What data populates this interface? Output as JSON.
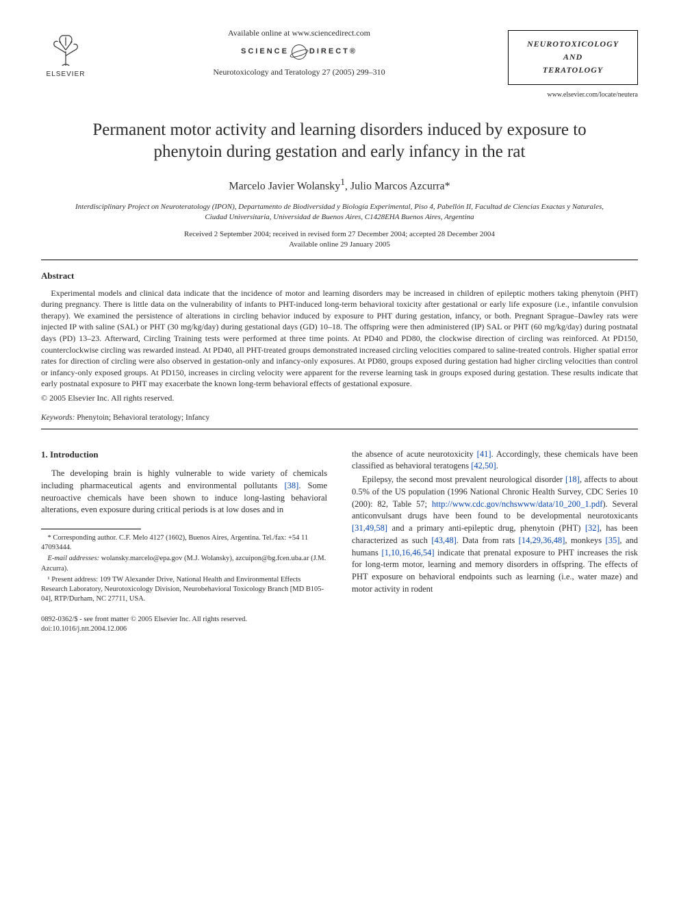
{
  "header": {
    "available_online": "Available online at www.sciencedirect.com",
    "sd_left": "SCIENCE",
    "sd_right": "DIRECT®",
    "journal_ref": "Neurotoxicology and Teratology 27 (2005) 299–310",
    "elsevier_label": "ELSEVIER",
    "journal_brand_line1": "NEUROTOXICOLOGY",
    "journal_brand_line2": "AND",
    "journal_brand_line3": "TERATOLOGY",
    "journal_url": "www.elsevier.com/locate/neutera"
  },
  "article": {
    "title": "Permanent motor activity and learning disorders induced by exposure to phenytoin during gestation and early infancy in the rat",
    "authors_html": "Marcelo Javier Wolansky<sup>1</sup>, Julio Marcos Azcurra*",
    "affiliation": "Interdisciplinary Project on Neuroteratology (IPON), Departamento de Biodiversidad y Biología Experimental, Piso 4, Pabellón II, Facultad de Ciencias Exactas y Naturales, Ciudad Universitaria, Universidad de Buenos Aires, C1428EHA Buenos Aires, Argentina",
    "dates_line1": "Received 2 September 2004; received in revised form 27 December 2004; accepted 28 December 2004",
    "dates_line2": "Available online 29 January 2005"
  },
  "abstract": {
    "heading": "Abstract",
    "text": "Experimental models and clinical data indicate that the incidence of motor and learning disorders may be increased in children of epileptic mothers taking phenytoin (PHT) during pregnancy. There is little data on the vulnerability of infants to PHT-induced long-term behavioral toxicity after gestational or early life exposure (i.e., infantile convulsion therapy). We examined the persistence of alterations in circling behavior induced by exposure to PHT during gestation, infancy, or both. Pregnant Sprague–Dawley rats were injected IP with saline (SAL) or PHT (30 mg/kg/day) during gestational days (GD) 10–18. The offspring were then administered (IP) SAL or PHT (60 mg/kg/day) during postnatal days (PD) 13–23. Afterward, Circling Training tests were performed at three time points. At PD40 and PD80, the clockwise direction of circling was reinforced. At PD150, counterclockwise circling was rewarded instead. At PD40, all PHT-treated groups demonstrated increased circling velocities compared to saline-treated controls. Higher spatial error rates for direction of circling were also observed in gestation-only and infancy-only exposures. At PD80, groups exposed during gestation had higher circling velocities than control or infancy-only exposed groups. At PD150, increases in circling velocity were apparent for the reverse learning task in groups exposed during gestation. These results indicate that early postnatal exposure to PHT may exacerbate the known long-term behavioral effects of gestational exposure.",
    "copyright": "© 2005 Elsevier Inc. All rights reserved."
  },
  "keywords": {
    "label": "Keywords:",
    "text": " Phenytoin; Behavioral teratology; Infancy"
  },
  "body": {
    "section_heading": "1. Introduction",
    "left_p1_html": "The developing brain is highly vulnerable to wide variety of chemicals including pharmaceutical agents and environmental pollutants <a class=\"ref\" href=\"#\">[38]</a>. Some neuroactive chemicals have been shown to induce long-lasting behavioral alterations, even exposure during critical periods is at low doses and in",
    "right_p1_html": "the absence of acute neurotoxicity <a class=\"ref\" href=\"#\">[41]</a>. Accordingly, these chemicals have been classified as behavioral teratogens <a class=\"ref\" href=\"#\">[42,50]</a>.",
    "right_p2_html": "Epilepsy, the second most prevalent neurological disorder <a class=\"ref\" href=\"#\">[18]</a>, affects to about 0.5% of the US population (1996 National Chronic Health Survey, CDC Series 10 (200): 82, Table 57; <a class=\"ref\" href=\"#\">http://www.cdc.gov/nchswww/data/10_200_1.pdf</a>). Several anticonvulsant drugs have been found to be developmental neurotoxicants <a class=\"ref\" href=\"#\">[31,49,58]</a> and a primary anti-epileptic drug, phenytoin (PHT) <a class=\"ref\" href=\"#\">[32]</a>, has been characterized as such <a class=\"ref\" href=\"#\">[43,48]</a>. Data from rats <a class=\"ref\" href=\"#\">[14,29,36,48]</a>, monkeys <a class=\"ref\" href=\"#\">[35]</a>, and humans <a class=\"ref\" href=\"#\">[1,10,16,46,54]</a> indicate that prenatal exposure to PHT increases the risk for long-term motor, learning and memory disorders in offspring. The effects of PHT exposure on behavioral endpoints such as learning (i.e., water maze) and motor activity in rodent"
  },
  "footnotes": {
    "corr": "* Corresponding author. C.F. Melo 4127 (1602), Buenos Aires, Argentina. Tel./fax: +54 11 47093444.",
    "email_label": "E-mail addresses:",
    "email_text": " wolansky.marcelo@epa.gov (M.J. Wolansky), azcuipon@bg.fcen.uba.ar (J.M. Azcurra).",
    "present": "¹ Present address: 109 TW Alexander Drive, National Health and Environmental Effects Research Laboratory, Neurotoxicology Division, Neurobehavioral Toxicology Branch [MD B105-04], RTP/Durham, NC 27711, USA."
  },
  "footer": {
    "line1": "0892-0362/$ - see front matter © 2005 Elsevier Inc. All rights reserved.",
    "line2": "doi:10.1016/j.ntt.2004.12.006"
  },
  "colors": {
    "text": "#2a2a2a",
    "link": "#0645ad",
    "rule": "#000000",
    "background": "#ffffff"
  }
}
